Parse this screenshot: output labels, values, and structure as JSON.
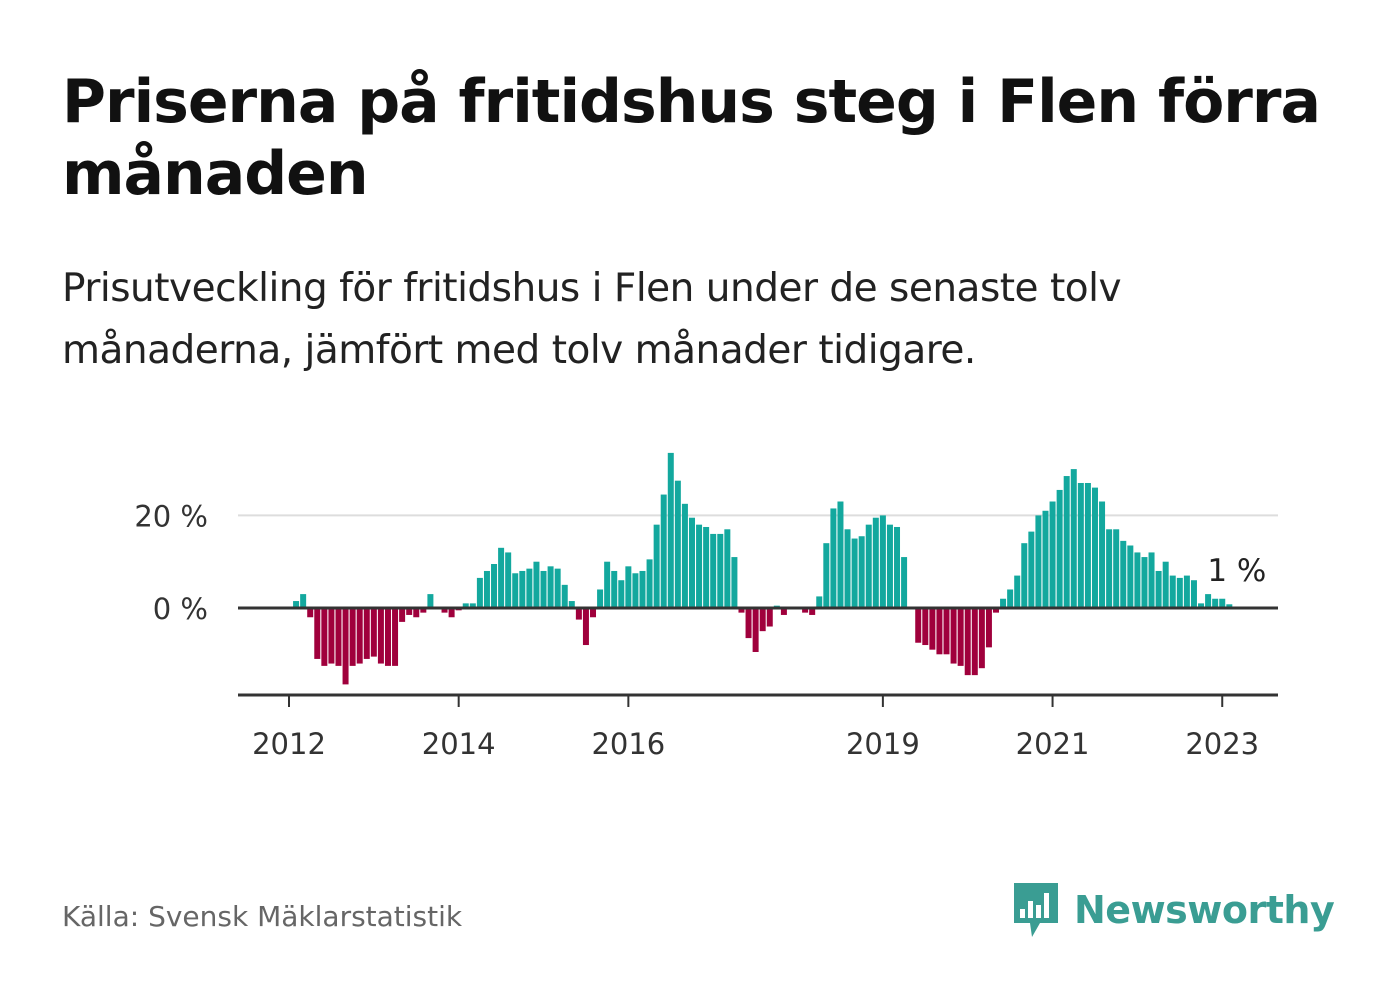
{
  "header": {
    "title": "Priserna på fritidshus steg i Flen förra månaden",
    "subtitle": "Prisutveckling för fritidshus i Flen under de senaste tolv månaderna, jämfört med tolv månader tidigare."
  },
  "footer": {
    "source": "Källa: Svensk Mäklarstatistik",
    "brand": "Newsworthy"
  },
  "colors": {
    "positive": "#13a89e",
    "negative": "#a0003c",
    "brand": "#3a9d93",
    "gridline": "#dddddd",
    "axis": "#333333"
  },
  "chart_data": {
    "type": "bar",
    "title": "",
    "xlabel": "",
    "ylabel": "",
    "ylim": [
      -18,
      35
    ],
    "grid": true,
    "y_ticks": [
      {
        "value": 0,
        "label": "0 %"
      },
      {
        "value": 20,
        "label": "20 %"
      }
    ],
    "x_ticks": [
      {
        "month_index": 0,
        "label": "2012"
      },
      {
        "month_index": 24,
        "label": "2014"
      },
      {
        "month_index": 48,
        "label": "2016"
      },
      {
        "month_index": 84,
        "label": "2019"
      },
      {
        "month_index": 108,
        "label": "2021"
      },
      {
        "month_index": 132,
        "label": "2023"
      }
    ],
    "start_month_index": 1,
    "annotation": {
      "text": "1 %",
      "month_index": 134,
      "value": 0.8
    },
    "values": [
      1.5,
      3,
      -2,
      -11,
      -12.5,
      -12,
      -12.5,
      -16.5,
      -12.5,
      -12,
      -11,
      -10.5,
      -12,
      -12.5,
      -12.5,
      -3,
      -1.5,
      -2,
      -1,
      3,
      0,
      -1,
      -2,
      -0.5,
      1,
      1,
      6.5,
      8,
      9.5,
      13,
      12,
      7.5,
      8,
      8.5,
      10,
      8,
      9,
      8.5,
      5,
      1.5,
      -2.5,
      -8,
      -2,
      4,
      10,
      8,
      6,
      9,
      7.5,
      8,
      10.5,
      18,
      24.5,
      33.5,
      27.5,
      22.5,
      19.5,
      18,
      17.5,
      16,
      16,
      17,
      11,
      -1,
      -6.5,
      -9.5,
      -5,
      -4,
      0.5,
      -1.5,
      0,
      0,
      -1,
      -1.5,
      2.5,
      14,
      21.5,
      23,
      17,
      15,
      15.5,
      18,
      19.5,
      20,
      18,
      17.5,
      11,
      0,
      -7.5,
      -8,
      -9,
      -10,
      -10,
      -12,
      -12.5,
      -14.5,
      -14.5,
      -13,
      -8.5,
      -1,
      2,
      4,
      7,
      14,
      16.5,
      20,
      21,
      23,
      25.5,
      28.5,
      30,
      27,
      27,
      26,
      23,
      17,
      17,
      14.5,
      13.5,
      12,
      11,
      12,
      8,
      10,
      7,
      6.5,
      7,
      6,
      1,
      3,
      2,
      2,
      0.8
    ]
  }
}
